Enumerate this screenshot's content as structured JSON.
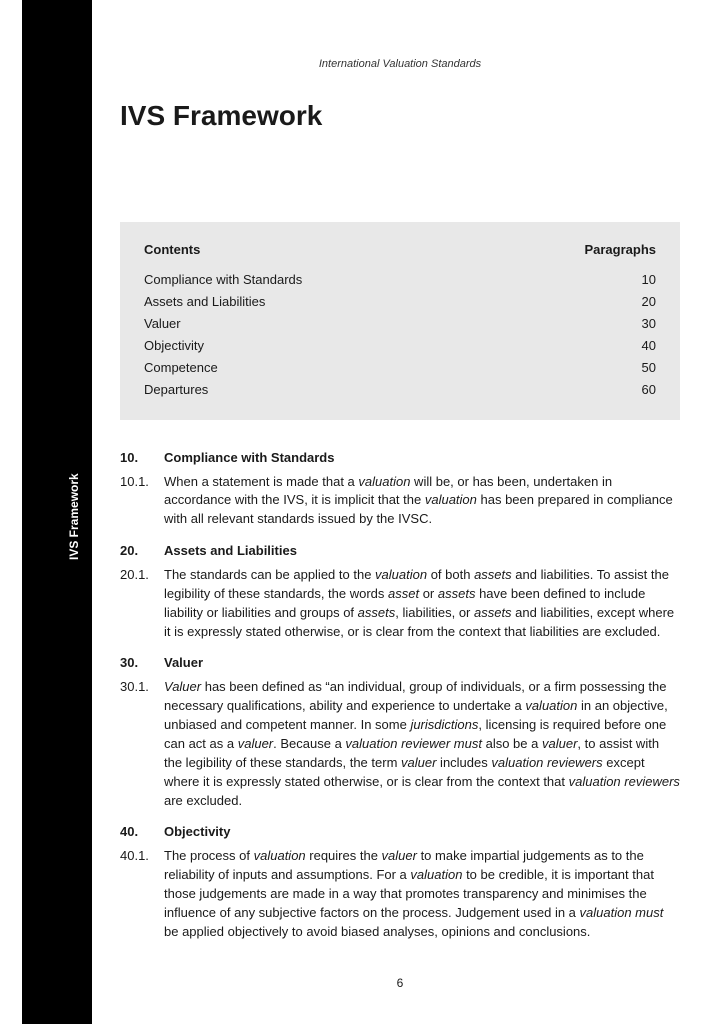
{
  "runningHeader": "International Valuation Standards",
  "pageTitle": "IVS Framework",
  "sidebarLabel": "IVS Framework",
  "pageNumber": "6",
  "contentsBox": {
    "headerLeft": "Contents",
    "headerRight": "Paragraphs",
    "rows": [
      {
        "label": "Compliance with Standards",
        "para": "10"
      },
      {
        "label": "Assets and Liabilities",
        "para": "20"
      },
      {
        "label": "Valuer",
        "para": "30"
      },
      {
        "label": "Objectivity",
        "para": "40"
      },
      {
        "label": "Competence",
        "para": "50"
      },
      {
        "label": "Departures",
        "para": "60"
      }
    ]
  },
  "sections": [
    {
      "num": "10.",
      "title": "Compliance with Standards",
      "paras": [
        {
          "num": "10.1.",
          "html": "When a statement is made that a <em>valuation</em> will be, or has been, undertaken in accordance with the IVS, it is implicit that the <em>valuation</em> has been prepared in compliance with all relevant standards issued by the IVSC."
        }
      ]
    },
    {
      "num": "20.",
      "title": "Assets and Liabilities",
      "paras": [
        {
          "num": "20.1.",
          "html": "The standards can be applied to the <em>valuation</em> of both <em>assets</em> and liabilities. To assist the legibility of these standards, the words <em>asset</em> or <em>assets</em> have been defined to include liability or liabilities and groups of <em>assets</em>, liabilities, or <em>assets</em> and liabilities, except where it is expressly stated otherwise, or is clear from the context that liabilities are excluded."
        }
      ]
    },
    {
      "num": "30.",
      "title": "Valuer",
      "paras": [
        {
          "num": "30.1.",
          "html": "<em>Valuer</em> has been defined as “an individual, group of individuals, or a firm possessing the necessary qualifications, ability and experience to undertake a <em>valuation</em> in an objective, unbiased and competent manner.  In some <em>jurisdictions</em>, licensing is required before one can act as a <em>valuer</em>. Because a <em>valuation reviewer must</em> also be a <em>valuer</em>, to assist with the legibility of these standards, the term <em>valuer</em> includes <em>valuation reviewers</em> except where it is expressly stated otherwise, or is clear from the context that <em>valuation reviewers</em> are excluded."
        }
      ]
    },
    {
      "num": "40.",
      "title": "Objectivity",
      "paras": [
        {
          "num": "40.1.",
          "html": "The process of <em>valuation</em> requires the <em>valuer</em> to make impartial judgements as to the reliability of inputs and assumptions.  For a <em>valuation</em> to be credible, it is important that those judgements are made in a way that promotes transparency and minimises the influence of any subjective factors on the process.  Judgement used in a <em>valuation must</em> be applied objectively to avoid biased analyses, opinions and conclusions."
        }
      ]
    }
  ],
  "styling": {
    "pageWidth": 709,
    "pageHeight": 1024,
    "sidebarColor": "#000000",
    "sidebarTextColor": "#ffffff",
    "contentsBoxBg": "#e8e8e8",
    "bodyTextColor": "#1a1a1a",
    "bodyFontSize": 13,
    "titleFontSize": 28,
    "sidebarWidth": 70,
    "contentLeft": 120,
    "contentWidth": 560
  }
}
